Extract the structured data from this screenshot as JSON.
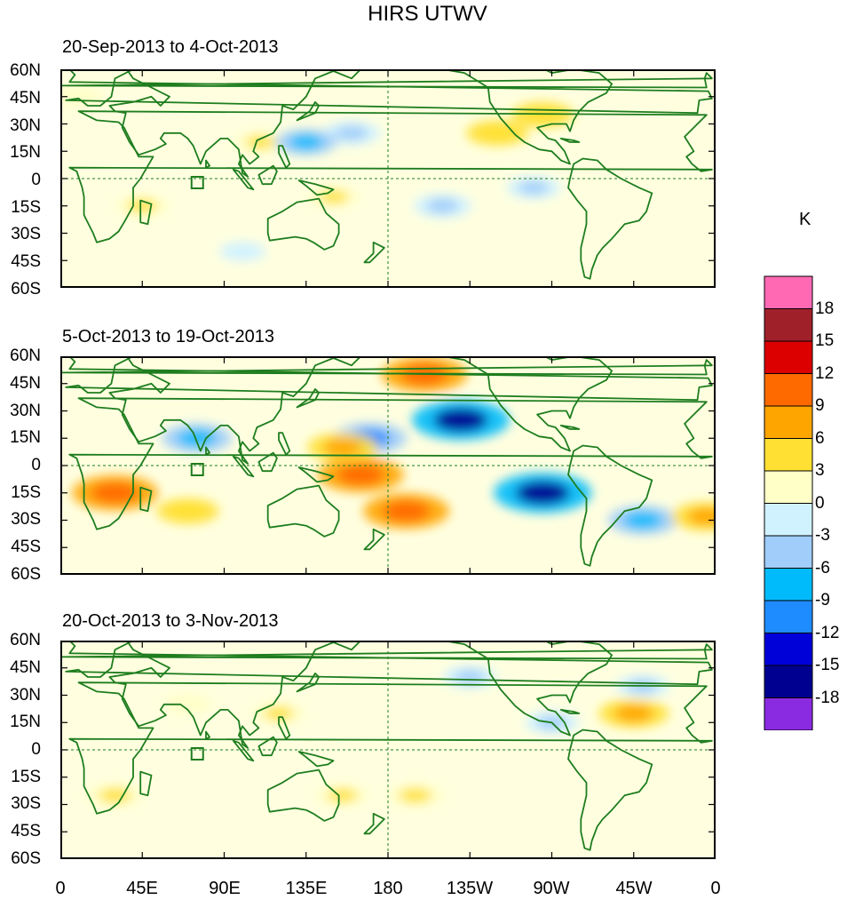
{
  "title": "HIRS UTWV",
  "colors": {
    "coast": "#1e7d1e",
    "frame": "#000000",
    "background": "#ffffe0"
  },
  "panels": [
    {
      "label": "20-Sep-2013 to 4-Oct-2013",
      "anomalies": [
        {
          "lon": 110,
          "lat": 20,
          "value": 4
        },
        {
          "lon": -120,
          "lat": 25,
          "value": 6
        },
        {
          "lon": -95,
          "lat": 35,
          "value": 6
        },
        {
          "lon": 45,
          "lat": -15,
          "value": 4
        },
        {
          "lon": 150,
          "lat": -10,
          "value": 4
        },
        {
          "lon": 160,
          "lat": 25,
          "value": -5
        },
        {
          "lon": 135,
          "lat": 20,
          "value": -6
        },
        {
          "lon": -150,
          "lat": -15,
          "value": -5
        },
        {
          "lon": -100,
          "lat": -5,
          "value": -4
        },
        {
          "lon": 10,
          "lat": 45,
          "value": 3
        },
        {
          "lon": 100,
          "lat": -40,
          "value": -2
        }
      ]
    },
    {
      "label": "5-Oct-2013 to 19-Oct-2013",
      "anomalies": [
        {
          "lon": -160,
          "lat": 50,
          "value": 12
        },
        {
          "lon": -170,
          "lat": -25,
          "value": 12
        },
        {
          "lon": 30,
          "lat": -15,
          "value": 12
        },
        {
          "lon": 165,
          "lat": -5,
          "value": 12
        },
        {
          "lon": -140,
          "lat": 25,
          "value": -15
        },
        {
          "lon": -95,
          "lat": -15,
          "value": -15
        },
        {
          "lon": 170,
          "lat": 15,
          "value": -9
        },
        {
          "lon": 70,
          "lat": -25,
          "value": 6
        },
        {
          "lon": 155,
          "lat": 10,
          "value": 8
        },
        {
          "lon": 75,
          "lat": 15,
          "value": -8
        },
        {
          "lon": -40,
          "lat": -30,
          "value": -8
        },
        {
          "lon": -5,
          "lat": -28,
          "value": 8
        }
      ]
    },
    {
      "label": "20-Oct-2013 to 3-Nov-2013",
      "anomalies": [
        {
          "lon": -45,
          "lat": 20,
          "value": 8
        },
        {
          "lon": 30,
          "lat": -25,
          "value": 5
        },
        {
          "lon": 155,
          "lat": -25,
          "value": 4
        },
        {
          "lon": -165,
          "lat": -25,
          "value": 5
        },
        {
          "lon": 120,
          "lat": 20,
          "value": 4
        },
        {
          "lon": -135,
          "lat": 40,
          "value": -4
        },
        {
          "lon": -40,
          "lat": 35,
          "value": -4
        },
        {
          "lon": 70,
          "lat": 25,
          "value": 3
        },
        {
          "lon": -90,
          "lat": 15,
          "value": -4
        }
      ]
    }
  ],
  "lat_labels": [
    "60N",
    "45N",
    "30N",
    "15N",
    "0",
    "15S",
    "30S",
    "45S",
    "60S"
  ],
  "lon_labels": [
    "0",
    "45E",
    "90E",
    "135E",
    "180",
    "135W",
    "90W",
    "45W",
    "0"
  ],
  "colorbar": {
    "unit": "K",
    "labels": [
      "18",
      "15",
      "12",
      "9",
      "6",
      "3",
      "0",
      "-3",
      "-6",
      "-9",
      "-12",
      "-15",
      "-18"
    ],
    "colors": [
      "#ff69b4",
      "#a0202a",
      "#dc0000",
      "#ff6a00",
      "#ffa500",
      "#ffe033",
      "#ffffc8",
      "#d0f2ff",
      "#a0cdfa",
      "#00bbfb",
      "#1e8cff",
      "#0000d9",
      "#000090",
      "#8a2be2"
    ]
  }
}
